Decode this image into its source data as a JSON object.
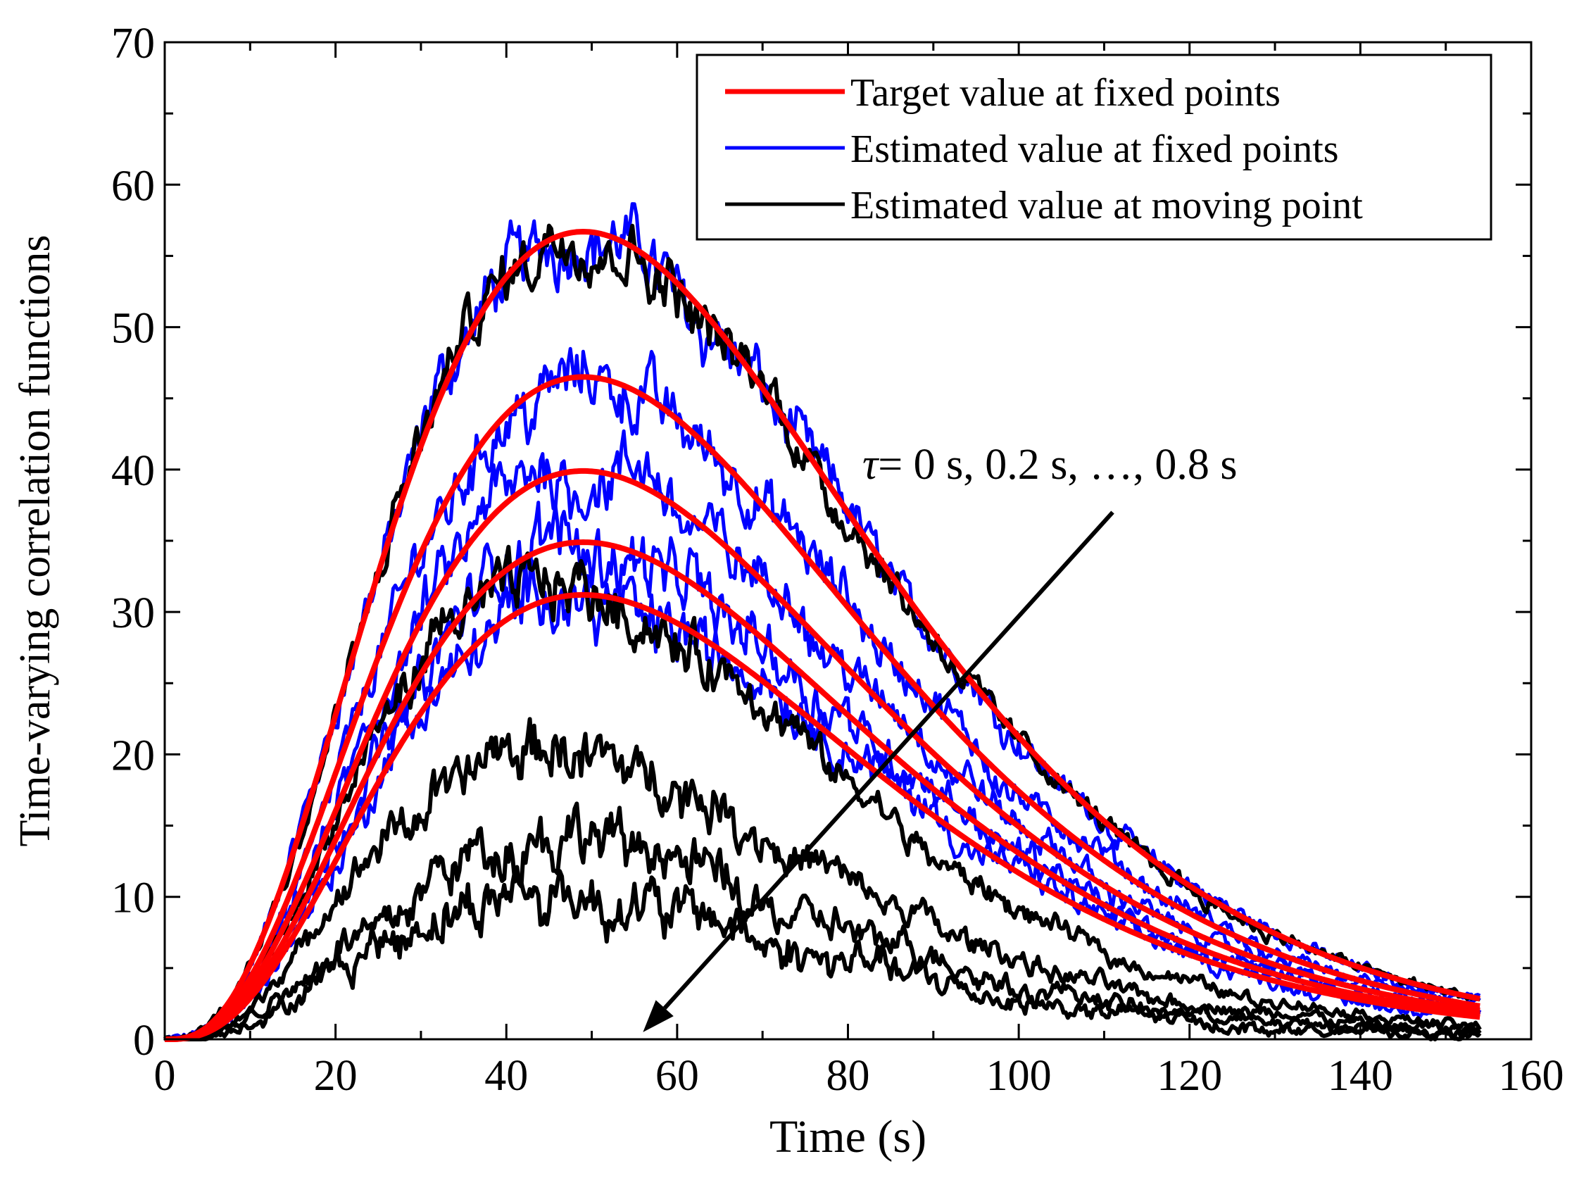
{
  "chart_data": {
    "type": "line",
    "xlabel": "Time (s)",
    "ylabel": "Time-varying correlation functions",
    "xlim": [
      0,
      160
    ],
    "ylim": [
      0,
      70
    ],
    "xticks": [
      0,
      20,
      40,
      60,
      80,
      100,
      120,
      140,
      160
    ],
    "yticks": [
      0,
      10,
      20,
      30,
      40,
      50,
      60,
      70
    ],
    "x_end": 154,
    "legend_position": "top-right",
    "legend": [
      {
        "label": "Target value at fixed points",
        "color": "#ff0000"
      },
      {
        "label": "Estimated value at fixed points",
        "color": "#0000ff"
      },
      {
        "label": "Estimated value at moving point",
        "color": "#000000"
      }
    ],
    "annotation": {
      "symbol": "τ",
      "text": "= 0 s, 0.2 s, …, 0.8 s",
      "arrow_from": [
        111,
        37
      ],
      "arrow_to": [
        56,
        0.5
      ]
    },
    "series": [
      {
        "name": "Target value at fixed points",
        "color": "#ff0000",
        "tau_s": [
          0,
          0.2,
          0.4,
          0.6,
          0.8
        ],
        "peak_time": 49,
        "peaks": [
          56.7,
          46.5,
          39.9,
          34.9,
          31.2
        ]
      },
      {
        "name": "Estimated value at fixed points",
        "color": "#0000ff",
        "tau_s": [
          0,
          0.2,
          0.4,
          0.6,
          0.8
        ],
        "peaks": [
          61.2,
          50.9,
          43.6,
          38.2,
          34.4
        ]
      },
      {
        "name": "Estimated value at moving point",
        "color": "#000000",
        "tau_s": [
          0,
          0.2,
          0.4,
          0.6,
          0.8
        ],
        "peaks": [
          59.4,
          36.6,
          22.9,
          15.8,
          11.5
        ]
      }
    ]
  }
}
